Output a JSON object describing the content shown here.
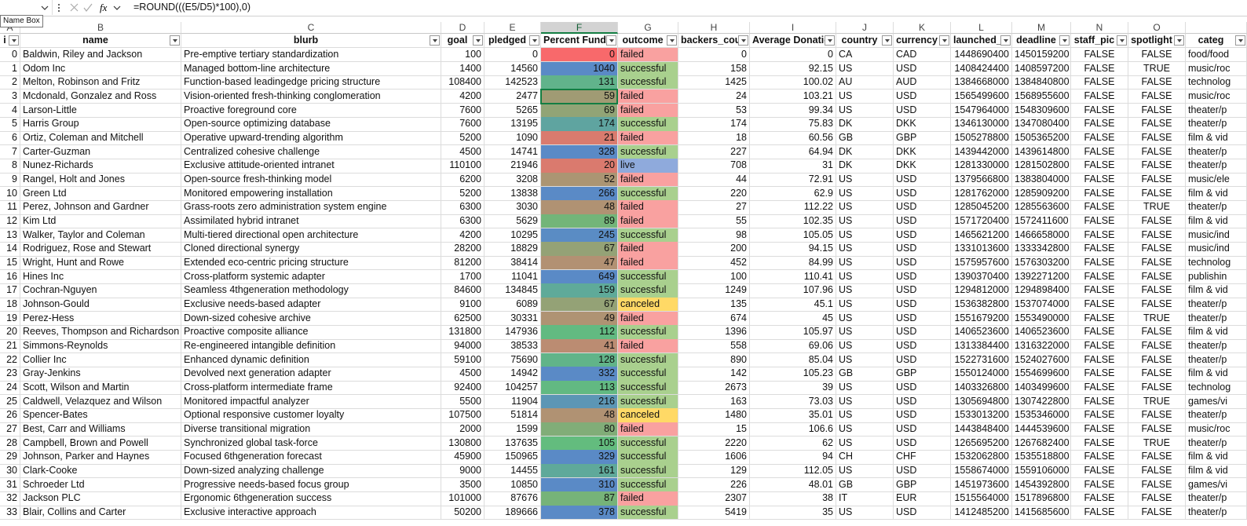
{
  "formula_bar": {
    "function_icon": "fx",
    "formula": "=ROUND(((E5/D5)*100),0)",
    "tooltip": "Name Box"
  },
  "column_letters": [
    "A",
    "B",
    "C",
    "D",
    "E",
    "F",
    "G",
    "H",
    "I",
    "J",
    "K",
    "L",
    "M",
    "N",
    "O"
  ],
  "headers": [
    "i",
    "name",
    "blurb",
    "goal",
    "pledged",
    "Percent Funde",
    "outcome",
    "backers_cou",
    "Average Donatic",
    "country",
    "currency",
    "launched_",
    "deadline",
    "staff_pic",
    "spotlight",
    "categ"
  ],
  "rows": [
    [
      0,
      "Baldwin, Riley and Jackson",
      "Pre-emptive tertiary standardization",
      100,
      0,
      0,
      "failed",
      0,
      0,
      "CA",
      "CAD",
      1448690400,
      1450159200,
      "FALSE",
      "FALSE",
      "food/food"
    ],
    [
      1,
      "Odom Inc",
      "Managed bottom-line architecture",
      1400,
      14560,
      1040,
      "successful",
      158,
      92.15,
      "US",
      "USD",
      1408424400,
      1408597200,
      "FALSE",
      "TRUE",
      "music/roc"
    ],
    [
      2,
      "Melton, Robinson and Fritz",
      "Function-based leadingedge pricing structure",
      108400,
      142523,
      131,
      "successful",
      1425,
      100.02,
      "AU",
      "AUD",
      1384668000,
      1384840800,
      "FALSE",
      "FALSE",
      "technolog"
    ],
    [
      3,
      "Mcdonald, Gonzalez and Ross",
      "Vision-oriented fresh-thinking conglomeration",
      4200,
      2477,
      59,
      "failed",
      24,
      103.21,
      "US",
      "USD",
      1565499600,
      1568955600,
      "FALSE",
      "FALSE",
      "music/roc"
    ],
    [
      4,
      "Larson-Little",
      "Proactive foreground core",
      7600,
      5265,
      69,
      "failed",
      53,
      99.34,
      "US",
      "USD",
      1547964000,
      1548309600,
      "FALSE",
      "FALSE",
      "theater/p"
    ],
    [
      5,
      "Harris Group",
      "Open-source optimizing database",
      7600,
      13195,
      174,
      "successful",
      174,
      75.83,
      "DK",
      "DKK",
      1346130000,
      1347080400,
      "FALSE",
      "FALSE",
      "theater/p"
    ],
    [
      6,
      "Ortiz, Coleman and Mitchell",
      "Operative upward-trending algorithm",
      5200,
      1090,
      21,
      "failed",
      18,
      60.56,
      "GB",
      "GBP",
      1505278800,
      1505365200,
      "FALSE",
      "FALSE",
      "film & vid"
    ],
    [
      7,
      "Carter-Guzman",
      "Centralized cohesive challenge",
      4500,
      14741,
      328,
      "successful",
      227,
      64.94,
      "DK",
      "DKK",
      1439442000,
      1439614800,
      "FALSE",
      "FALSE",
      "theater/p"
    ],
    [
      8,
      "Nunez-Richards",
      "Exclusive attitude-oriented intranet",
      110100,
      21946,
      20,
      "live",
      708,
      31,
      "DK",
      "DKK",
      1281330000,
      1281502800,
      "FALSE",
      "FALSE",
      "theater/p"
    ],
    [
      9,
      "Rangel, Holt and Jones",
      "Open-source fresh-thinking model",
      6200,
      3208,
      52,
      "failed",
      44,
      72.91,
      "US",
      "USD",
      1379566800,
      1383804000,
      "FALSE",
      "FALSE",
      "music/ele"
    ],
    [
      10,
      "Green Ltd",
      "Monitored empowering installation",
      5200,
      13838,
      266,
      "successful",
      220,
      62.9,
      "US",
      "USD",
      1281762000,
      1285909200,
      "FALSE",
      "FALSE",
      "film & vid"
    ],
    [
      11,
      "Perez, Johnson and Gardner",
      "Grass-roots zero administration system engine",
      6300,
      3030,
      48,
      "failed",
      27,
      112.22,
      "US",
      "USD",
      1285045200,
      1285563600,
      "FALSE",
      "TRUE",
      "theater/p"
    ],
    [
      12,
      "Kim Ltd",
      "Assimilated hybrid intranet",
      6300,
      5629,
      89,
      "failed",
      55,
      102.35,
      "US",
      "USD",
      1571720400,
      1572411600,
      "FALSE",
      "FALSE",
      "film & vid"
    ],
    [
      13,
      "Walker, Taylor and Coleman",
      "Multi-tiered directional open architecture",
      4200,
      10295,
      245,
      "successful",
      98,
      105.05,
      "US",
      "USD",
      1465621200,
      1466658000,
      "FALSE",
      "FALSE",
      "music/ind"
    ],
    [
      14,
      "Rodriguez, Rose and Stewart",
      "Cloned directional synergy",
      28200,
      18829,
      67,
      "failed",
      200,
      94.15,
      "US",
      "USD",
      1331013600,
      1333342800,
      "FALSE",
      "FALSE",
      "music/ind"
    ],
    [
      15,
      "Wright, Hunt and Rowe",
      "Extended eco-centric pricing structure",
      81200,
      38414,
      47,
      "failed",
      452,
      84.99,
      "US",
      "USD",
      1575957600,
      1576303200,
      "FALSE",
      "FALSE",
      "technolog"
    ],
    [
      16,
      "Hines Inc",
      "Cross-platform systemic adapter",
      1700,
      11041,
      649,
      "successful",
      100,
      110.41,
      "US",
      "USD",
      1390370400,
      1392271200,
      "FALSE",
      "FALSE",
      "publishin"
    ],
    [
      17,
      "Cochran-Nguyen",
      "Seamless 4thgeneration methodology",
      84600,
      134845,
      159,
      "successful",
      1249,
      107.96,
      "US",
      "USD",
      1294812000,
      1294898400,
      "FALSE",
      "FALSE",
      "film & vid"
    ],
    [
      18,
      "Johnson-Gould",
      "Exclusive needs-based adapter",
      9100,
      6089,
      67,
      "canceled",
      135,
      45.1,
      "US",
      "USD",
      1536382800,
      1537074000,
      "FALSE",
      "FALSE",
      "theater/p"
    ],
    [
      19,
      "Perez-Hess",
      "Down-sized cohesive archive",
      62500,
      30331,
      49,
      "failed",
      674,
      45,
      "US",
      "USD",
      1551679200,
      1553490000,
      "FALSE",
      "TRUE",
      "theater/p"
    ],
    [
      20,
      "Reeves, Thompson and Richardson",
      "Proactive composite alliance",
      131800,
      147936,
      112,
      "successful",
      1396,
      105.97,
      "US",
      "USD",
      1406523600,
      1406523600,
      "FALSE",
      "FALSE",
      "film & vid"
    ],
    [
      21,
      "Simmons-Reynolds",
      "Re-engineered intangible definition",
      94000,
      38533,
      41,
      "failed",
      558,
      69.06,
      "US",
      "USD",
      1313384400,
      1316322000,
      "FALSE",
      "FALSE",
      "theater/p"
    ],
    [
      22,
      "Collier Inc",
      "Enhanced dynamic definition",
      59100,
      75690,
      128,
      "successful",
      890,
      85.04,
      "US",
      "USD",
      1522731600,
      1524027600,
      "FALSE",
      "FALSE",
      "theater/p"
    ],
    [
      23,
      "Gray-Jenkins",
      "Devolved next generation adapter",
      4500,
      14942,
      332,
      "successful",
      142,
      105.23,
      "GB",
      "GBP",
      1550124000,
      1554699600,
      "FALSE",
      "FALSE",
      "film & vid"
    ],
    [
      24,
      "Scott, Wilson and Martin",
      "Cross-platform intermediate frame",
      92400,
      104257,
      113,
      "successful",
      2673,
      39,
      "US",
      "USD",
      1403326800,
      1403499600,
      "FALSE",
      "FALSE",
      "technolog"
    ],
    [
      25,
      "Caldwell, Velazquez and Wilson",
      "Monitored impactful analyzer",
      5500,
      11904,
      216,
      "successful",
      163,
      73.03,
      "US",
      "USD",
      1305694800,
      1307422800,
      "FALSE",
      "TRUE",
      "games/vi"
    ],
    [
      26,
      "Spencer-Bates",
      "Optional responsive customer loyalty",
      107500,
      51814,
      48,
      "canceled",
      1480,
      35.01,
      "US",
      "USD",
      1533013200,
      1535346000,
      "FALSE",
      "FALSE",
      "theater/p"
    ],
    [
      27,
      "Best, Carr and Williams",
      "Diverse transitional migration",
      2000,
      1599,
      80,
      "failed",
      15,
      106.6,
      "US",
      "USD",
      1443848400,
      1444539600,
      "FALSE",
      "FALSE",
      "music/roc"
    ],
    [
      28,
      "Campbell, Brown and Powell",
      "Synchronized global task-force",
      130800,
      137635,
      105,
      "successful",
      2220,
      62,
      "US",
      "USD",
      1265695200,
      1267682400,
      "FALSE",
      "TRUE",
      "theater/p"
    ],
    [
      29,
      "Johnson, Parker and Haynes",
      "Focused 6thgeneration forecast",
      45900,
      150965,
      329,
      "successful",
      1606,
      94,
      "CH",
      "CHF",
      1532062800,
      1535518800,
      "FALSE",
      "FALSE",
      "film & vid"
    ],
    [
      30,
      "Clark-Cooke",
      "Down-sized analyzing challenge",
      9000,
      14455,
      161,
      "successful",
      129,
      112.05,
      "US",
      "USD",
      1558674000,
      1559106000,
      "FALSE",
      "FALSE",
      "film & vid"
    ],
    [
      31,
      "Schroeder Ltd",
      "Progressive needs-based focus group",
      3500,
      10850,
      310,
      "successful",
      226,
      48.01,
      "GB",
      "GBP",
      1451973600,
      1454392800,
      "FALSE",
      "FALSE",
      "games/vi"
    ],
    [
      32,
      "Jackson PLC",
      "Ergonomic 6thgeneration success",
      101000,
      87676,
      87,
      "failed",
      2307,
      38,
      "IT",
      "EUR",
      1515564000,
      1517896800,
      "FALSE",
      "FALSE",
      "theater/p"
    ],
    [
      33,
      "Blair, Collins and Carter",
      "Exclusive interactive approach",
      50200,
      189666,
      378,
      "successful",
      5419,
      35,
      "US",
      "USD",
      1412485200,
      1415685600,
      "FALSE",
      "FALSE",
      "theater/p"
    ]
  ]
}
